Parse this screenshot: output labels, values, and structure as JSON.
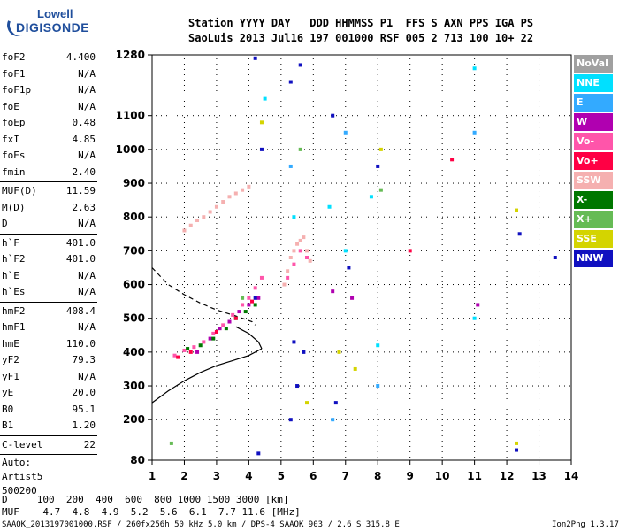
{
  "logo": {
    "line1": "Lowell",
    "line2": "DIGISONDE"
  },
  "header": {
    "line1": "Station YYYY DAY   DDD HHMMSS P1  FFS S AXN PPS IGA PS",
    "line2": "SaoLuis 2013 Jul16 197 001000 RSF 005 2 713 100 10+ 22"
  },
  "params": [
    {
      "label": "foF2",
      "value": "4.400"
    },
    {
      "label": "foF1",
      "value": "N/A"
    },
    {
      "label": "foF1p",
      "value": "N/A"
    },
    {
      "label": "foE",
      "value": "N/A"
    },
    {
      "label": "foEp",
      "value": "0.48"
    },
    {
      "label": "fxI",
      "value": "4.85"
    },
    {
      "label": "foEs",
      "value": "N/A"
    },
    {
      "label": "fmin",
      "value": "2.40"
    },
    {
      "label": "MUF(D)",
      "value": "11.59"
    },
    {
      "label": "M(D)",
      "value": "2.63"
    },
    {
      "label": "D",
      "value": "N/A"
    },
    {
      "label": "h`F",
      "value": "401.0"
    },
    {
      "label": "h`F2",
      "value": "401.0"
    },
    {
      "label": "h`E",
      "value": "N/A"
    },
    {
      "label": "h`Es",
      "value": "N/A"
    },
    {
      "label": "hmF2",
      "value": "408.4"
    },
    {
      "label": "hmF1",
      "value": "N/A"
    },
    {
      "label": "hmE",
      "value": "110.0"
    },
    {
      "label": "yF2",
      "value": "79.3"
    },
    {
      "label": "yF1",
      "value": "N/A"
    },
    {
      "label": "yE",
      "value": "20.0"
    },
    {
      "label": "B0",
      "value": "95.1"
    },
    {
      "label": "B1",
      "value": "1.20"
    },
    {
      "label": "C-level",
      "value": "22"
    }
  ],
  "autoscaling": {
    "line1": "Auto:",
    "line2": "Artist5",
    "line3": "500200"
  },
  "muf_table": {
    "d_line": "D     100  200  400  600  800 1000 1500 3000 [km]",
    "muf_line": "MUF    4.7  4.8  4.9  5.2  5.6  6.1  7.7 11.6 [MHz]"
  },
  "footer": {
    "left": "SAAOK_2013197001000.RSF / 260fx256h 50 kHz 5.0 km / DPS-4 SAAOK 903 / 2.6 S 315.8 E",
    "right": "Ion2Png 1.3.17"
  },
  "legend": [
    {
      "name": "NoVal",
      "color": "#a0a0a0"
    },
    {
      "name": "NNE",
      "color": "#00e0ff"
    },
    {
      "name": "E",
      "color": "#33aaff"
    },
    {
      "name": "W",
      "color": "#b000b0"
    },
    {
      "name": "Vo-",
      "color": "#ff55aa"
    },
    {
      "name": "Vo+",
      "color": "#ff0044"
    },
    {
      "name": "SSW",
      "color": "#f5b0b0"
    },
    {
      "name": "X-",
      "color": "#007700"
    },
    {
      "name": "X+",
      "color": "#66bb55"
    },
    {
      "name": "SSE",
      "color": "#d4d400"
    },
    {
      "name": "NNW",
      "color": "#1010c0"
    }
  ],
  "chart_data": {
    "type": "scatter",
    "title": "",
    "xlabel": "",
    "ylabel": "",
    "xlim": [
      1,
      14
    ],
    "ylim": [
      80,
      1280
    ],
    "x_ticks": [
      1,
      2,
      3,
      4,
      5,
      6,
      7,
      8,
      9,
      10,
      11,
      12,
      13,
      14
    ],
    "y_ticks": [
      80,
      200,
      300,
      400,
      500,
      600,
      700,
      800,
      900,
      1000,
      1100,
      1280
    ],
    "grid": true,
    "legend_position": "right",
    "series": [
      {
        "name": "SSW",
        "color": "#f5b0b0",
        "points": [
          [
            2.0,
            760
          ],
          [
            2.2,
            775
          ],
          [
            2.4,
            790
          ],
          [
            2.6,
            800
          ],
          [
            2.8,
            815
          ],
          [
            3.0,
            830
          ],
          [
            3.2,
            845
          ],
          [
            3.4,
            860
          ],
          [
            3.6,
            870
          ],
          [
            3.8,
            880
          ],
          [
            4.0,
            890
          ],
          [
            5.1,
            600
          ],
          [
            5.2,
            640
          ],
          [
            5.3,
            680
          ],
          [
            5.4,
            700
          ],
          [
            5.5,
            720
          ],
          [
            5.6,
            730
          ],
          [
            5.7,
            740
          ],
          [
            5.8,
            700
          ],
          [
            5.9,
            670
          ]
        ]
      },
      {
        "name": "Vo-",
        "color": "#ff55aa",
        "points": [
          [
            1.7,
            390
          ],
          [
            2.0,
            405
          ],
          [
            2.3,
            415
          ],
          [
            2.6,
            430
          ],
          [
            2.9,
            455
          ],
          [
            3.2,
            480
          ],
          [
            3.5,
            510
          ],
          [
            3.8,
            540
          ],
          [
            4.0,
            560
          ],
          [
            4.2,
            590
          ],
          [
            4.4,
            620
          ],
          [
            5.2,
            620
          ],
          [
            5.4,
            660
          ],
          [
            5.6,
            700
          ],
          [
            5.8,
            680
          ]
        ]
      },
      {
        "name": "W",
        "color": "#b000b0",
        "points": [
          [
            2.4,
            400
          ],
          [
            2.8,
            440
          ],
          [
            3.1,
            470
          ],
          [
            3.4,
            490
          ],
          [
            3.7,
            520
          ],
          [
            4.0,
            540
          ],
          [
            4.3,
            560
          ],
          [
            6.6,
            580
          ],
          [
            7.2,
            560
          ],
          [
            11.1,
            540
          ]
        ]
      },
      {
        "name": "X-",
        "color": "#007700",
        "points": [
          [
            2.1,
            410
          ],
          [
            2.5,
            420
          ],
          [
            2.9,
            440
          ],
          [
            3.3,
            470
          ],
          [
            3.6,
            500
          ],
          [
            3.9,
            520
          ],
          [
            4.2,
            540
          ]
        ]
      },
      {
        "name": "Vo+",
        "color": "#ff0044",
        "points": [
          [
            1.8,
            385
          ],
          [
            2.2,
            400
          ],
          [
            3.0,
            460
          ],
          [
            3.6,
            500
          ],
          [
            4.1,
            550
          ],
          [
            9.0,
            700
          ],
          [
            10.3,
            970
          ]
        ]
      },
      {
        "name": "NNW",
        "color": "#1010c0",
        "points": [
          [
            4.2,
            1270
          ],
          [
            4.2,
            560
          ],
          [
            4.3,
            100
          ],
          [
            5.3,
            1200
          ],
          [
            5.3,
            200
          ],
          [
            5.4,
            430
          ],
          [
            5.6,
            1250
          ],
          [
            5.7,
            400
          ],
          [
            6.7,
            250
          ],
          [
            7.1,
            650
          ],
          [
            8.0,
            950
          ],
          [
            12.3,
            110
          ],
          [
            12.4,
            750
          ],
          [
            13.5,
            680
          ],
          [
            4.4,
            1000
          ],
          [
            5.5,
            300
          ],
          [
            6.6,
            1100
          ]
        ]
      },
      {
        "name": "NNE",
        "color": "#00e0ff",
        "points": [
          [
            4.5,
            1150
          ],
          [
            5.4,
            800
          ],
          [
            6.5,
            830
          ],
          [
            7.0,
            700
          ],
          [
            7.8,
            860
          ],
          [
            8.0,
            420
          ],
          [
            11.0,
            1240
          ],
          [
            11.0,
            500
          ]
        ]
      },
      {
        "name": "E",
        "color": "#33aaff",
        "points": [
          [
            5.3,
            950
          ],
          [
            6.6,
            200
          ],
          [
            7.0,
            1050
          ],
          [
            8.0,
            300
          ],
          [
            11.0,
            1050
          ]
        ]
      },
      {
        "name": "SSE",
        "color": "#d4d400",
        "points": [
          [
            4.4,
            1080
          ],
          [
            5.8,
            250
          ],
          [
            6.8,
            400
          ],
          [
            7.3,
            350
          ],
          [
            8.1,
            1000
          ],
          [
            12.3,
            820
          ],
          [
            12.3,
            130
          ]
        ]
      },
      {
        "name": "X+",
        "color": "#66bb55",
        "points": [
          [
            1.6,
            130
          ],
          [
            3.8,
            560
          ],
          [
            5.6,
            1000
          ],
          [
            8.1,
            880
          ]
        ]
      }
    ],
    "curves": [
      {
        "name": "profile",
        "style": "solid",
        "points": [
          [
            1,
            250
          ],
          [
            1.5,
            285
          ],
          [
            2.0,
            315
          ],
          [
            2.5,
            340
          ],
          [
            3.0,
            360
          ],
          [
            3.5,
            375
          ],
          [
            4.0,
            390
          ],
          [
            4.4,
            410
          ]
        ]
      },
      {
        "name": "trace",
        "style": "solid",
        "points": [
          [
            3.6,
            475
          ],
          [
            4.0,
            455
          ],
          [
            4.3,
            430
          ],
          [
            4.4,
            410
          ]
        ]
      },
      {
        "name": "model",
        "style": "dashed",
        "points": [
          [
            1,
            650
          ],
          [
            1.5,
            600
          ],
          [
            2.0,
            570
          ],
          [
            2.5,
            545
          ],
          [
            3.0,
            525
          ],
          [
            3.5,
            510
          ],
          [
            3.8,
            500
          ],
          [
            4.1,
            490
          ],
          [
            4.2,
            480
          ]
        ]
      }
    ]
  }
}
